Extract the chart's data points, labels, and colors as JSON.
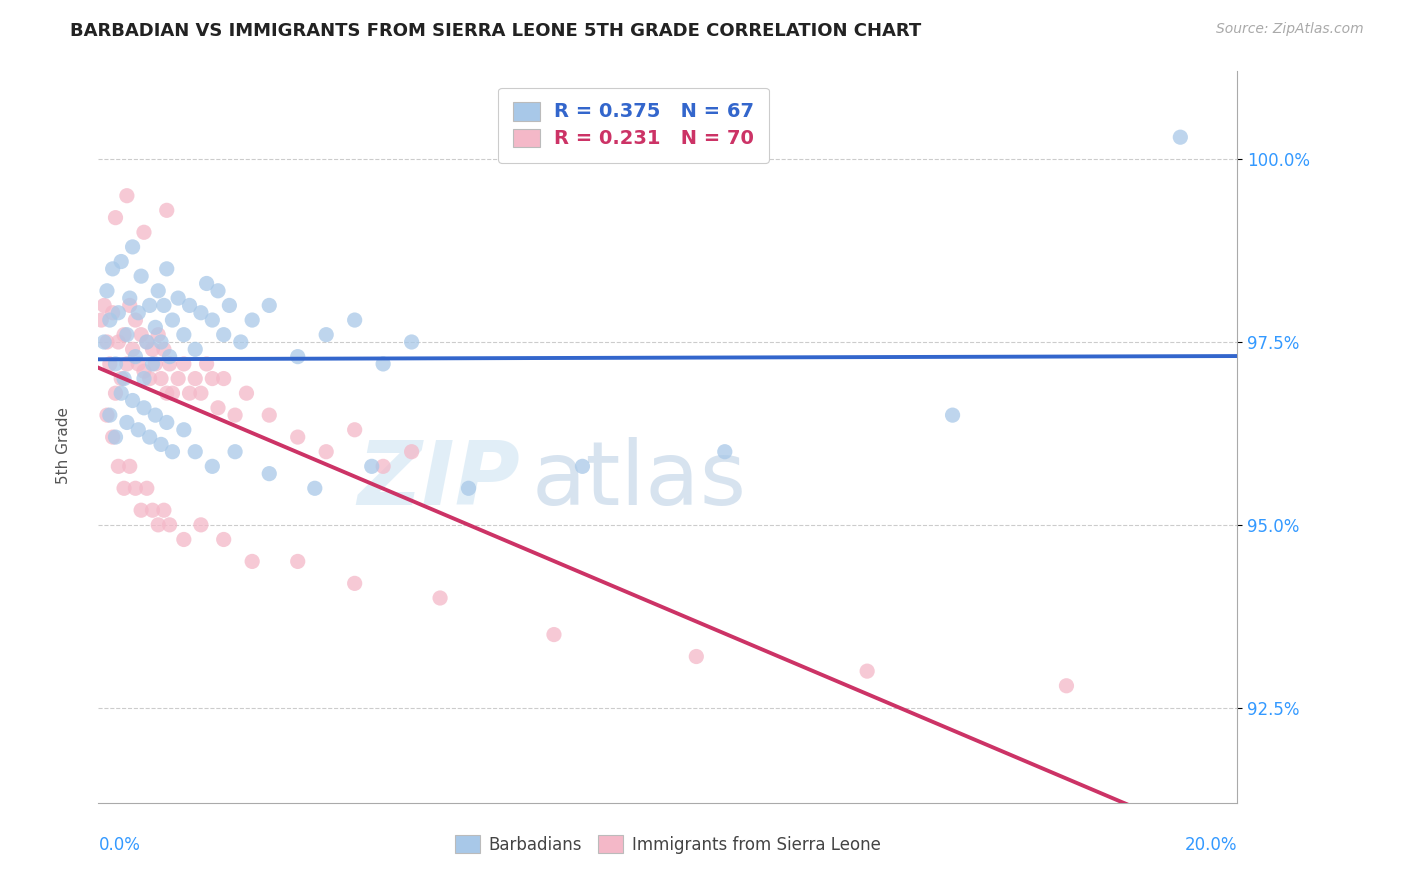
{
  "title": "BARBADIAN VS IMMIGRANTS FROM SIERRA LEONE 5TH GRADE CORRELATION CHART",
  "source": "Source: ZipAtlas.com",
  "ylabel": "5th Grade",
  "yticks": [
    92.5,
    95.0,
    97.5,
    100.0
  ],
  "ytick_labels": [
    "92.5%",
    "95.0%",
    "97.5%",
    "100.0%"
  ],
  "xlim": [
    0.0,
    20.0
  ],
  "ylim": [
    91.2,
    101.2
  ],
  "legend_blue_label": "R = 0.375   N = 67",
  "legend_pink_label": "R = 0.231   N = 70",
  "blue_color": "#a8c8e8",
  "pink_color": "#f4b8c8",
  "blue_line_color": "#3366cc",
  "pink_line_color": "#cc3366",
  "watermark_zip": "ZIP",
  "watermark_atlas": "atlas",
  "barbadians_x": [
    0.1,
    0.15,
    0.2,
    0.25,
    0.3,
    0.35,
    0.4,
    0.45,
    0.5,
    0.55,
    0.6,
    0.65,
    0.7,
    0.75,
    0.8,
    0.85,
    0.9,
    0.95,
    1.0,
    1.05,
    1.1,
    1.15,
    1.2,
    1.25,
    1.3,
    1.4,
    1.5,
    1.6,
    1.7,
    1.8,
    1.9,
    2.0,
    2.1,
    2.2,
    2.3,
    2.5,
    2.7,
    3.0,
    3.5,
    4.0,
    4.5,
    5.0,
    5.5,
    0.2,
    0.3,
    0.4,
    0.5,
    0.6,
    0.7,
    0.8,
    0.9,
    1.0,
    1.1,
    1.2,
    1.3,
    1.5,
    1.7,
    2.0,
    2.4,
    3.0,
    3.8,
    4.8,
    6.5,
    8.5,
    11.0,
    15.0,
    19.0
  ],
  "barbadians_y": [
    97.5,
    98.2,
    97.8,
    98.5,
    97.2,
    97.9,
    98.6,
    97.0,
    97.6,
    98.1,
    98.8,
    97.3,
    97.9,
    98.4,
    97.0,
    97.5,
    98.0,
    97.2,
    97.7,
    98.2,
    97.5,
    98.0,
    98.5,
    97.3,
    97.8,
    98.1,
    97.6,
    98.0,
    97.4,
    97.9,
    98.3,
    97.8,
    98.2,
    97.6,
    98.0,
    97.5,
    97.8,
    98.0,
    97.3,
    97.6,
    97.8,
    97.2,
    97.5,
    96.5,
    96.2,
    96.8,
    96.4,
    96.7,
    96.3,
    96.6,
    96.2,
    96.5,
    96.1,
    96.4,
    96.0,
    96.3,
    96.0,
    95.8,
    96.0,
    95.7,
    95.5,
    95.8,
    95.5,
    95.8,
    96.0,
    96.5,
    100.3
  ],
  "sierraleone_x": [
    0.05,
    0.1,
    0.15,
    0.2,
    0.25,
    0.3,
    0.35,
    0.4,
    0.45,
    0.5,
    0.55,
    0.6,
    0.65,
    0.7,
    0.75,
    0.8,
    0.85,
    0.9,
    0.95,
    1.0,
    1.05,
    1.1,
    1.15,
    1.2,
    1.25,
    1.3,
    1.4,
    1.5,
    1.6,
    1.7,
    1.8,
    1.9,
    2.0,
    2.1,
    2.2,
    2.4,
    2.6,
    3.0,
    3.5,
    4.0,
    4.5,
    5.0,
    5.5,
    0.15,
    0.25,
    0.35,
    0.45,
    0.55,
    0.65,
    0.75,
    0.85,
    0.95,
    1.05,
    1.15,
    1.25,
    1.5,
    1.8,
    2.2,
    2.7,
    3.5,
    4.5,
    6.0,
    8.0,
    10.5,
    13.5,
    17.0,
    0.3,
    0.5,
    0.8,
    1.2
  ],
  "sierraleone_y": [
    97.8,
    98.0,
    97.5,
    97.2,
    97.9,
    96.8,
    97.5,
    97.0,
    97.6,
    97.2,
    98.0,
    97.4,
    97.8,
    97.2,
    97.6,
    97.1,
    97.5,
    97.0,
    97.4,
    97.2,
    97.6,
    97.0,
    97.4,
    96.8,
    97.2,
    96.8,
    97.0,
    97.2,
    96.8,
    97.0,
    96.8,
    97.2,
    97.0,
    96.6,
    97.0,
    96.5,
    96.8,
    96.5,
    96.2,
    96.0,
    96.3,
    95.8,
    96.0,
    96.5,
    96.2,
    95.8,
    95.5,
    95.8,
    95.5,
    95.2,
    95.5,
    95.2,
    95.0,
    95.2,
    95.0,
    94.8,
    95.0,
    94.8,
    94.5,
    94.5,
    94.2,
    94.0,
    93.5,
    93.2,
    93.0,
    92.8,
    99.2,
    99.5,
    99.0,
    99.3
  ]
}
